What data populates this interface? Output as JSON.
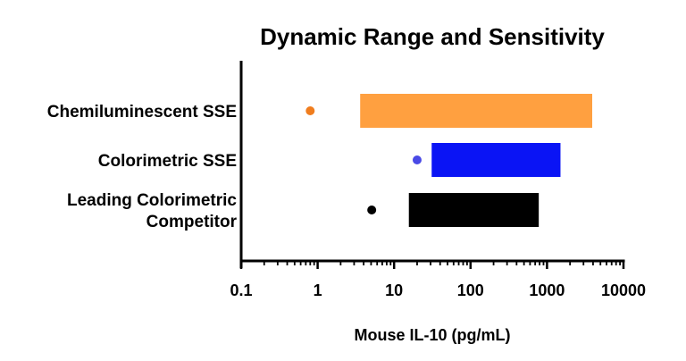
{
  "chart_data": {
    "type": "bar",
    "subtype": "floating-horizontal-range",
    "title": "Dynamic Range and Sensitivity",
    "xlabel": "Mouse IL-10 (pg/mL)",
    "ylabel": "",
    "x_scale": "log",
    "xlim": [
      0.1,
      10000
    ],
    "x_ticks": [
      "0.1",
      "1",
      "10",
      "100",
      "1000",
      "10000"
    ],
    "grid": false,
    "legend": "none",
    "categories": [
      {
        "label_lines": [
          "Chemiluminescent SSE"
        ]
      },
      {
        "label_lines": [
          "Colorimetric SSE"
        ]
      },
      {
        "label_lines": [
          "Leading Colorimetric",
          "Competitor"
        ]
      }
    ],
    "series": [
      {
        "values": [
          {
            "range": [
              3.6,
              3900
            ],
            "sensitivity": 0.8,
            "color": "#ffa040"
          },
          {
            "range": [
              31,
              1500
            ],
            "sensitivity": 20,
            "color": "#0a14f5"
          },
          {
            "range": [
              15.6,
              780
            ],
            "sensitivity": 5.1,
            "color": "#000000"
          }
        ]
      }
    ],
    "dot_colors": [
      "#f07d1e",
      "#4a4ae6",
      "#000000"
    ]
  }
}
